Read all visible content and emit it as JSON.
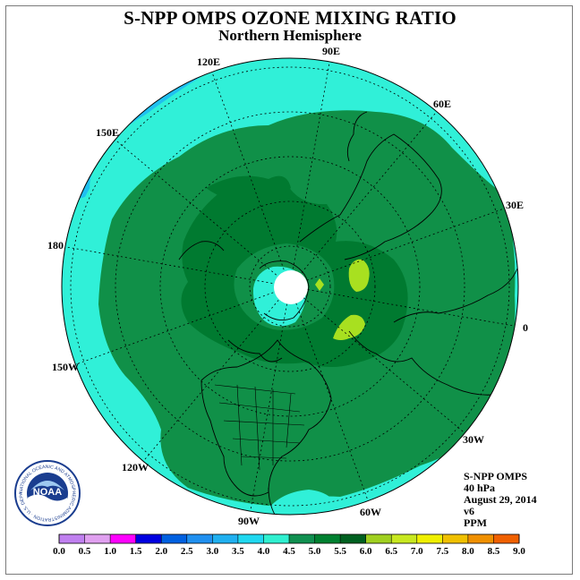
{
  "title": "S-NPP OMPS OZONE MIXING RATIO",
  "subtitle": "Northern Hemisphere",
  "longitude_labels": [
    "90E",
    "60E",
    "30E",
    "0",
    "30W",
    "60W",
    "90W",
    "120W",
    "150W",
    "180",
    "150E",
    "120E"
  ],
  "info": {
    "instrument": "S-NPP OMPS",
    "pressure": "40 hPa",
    "date": "August 29, 2014",
    "version": "v6",
    "units": "PPM"
  },
  "logo": {
    "text": "NOAA",
    "ring_text": "NATIONAL OCEANIC AND ATMOSPHERIC ADMINISTRATION · U.S. DEPARTMENT OF COMMERCE"
  },
  "colorbar": {
    "ticks": [
      "0.0",
      "0.5",
      "1.0",
      "1.5",
      "2.0",
      "2.5",
      "3.0",
      "3.5",
      "4.0",
      "4.5",
      "5.0",
      "5.5",
      "6.0",
      "6.5",
      "7.0",
      "7.5",
      "8.0",
      "8.5",
      "9.0"
    ],
    "colors": [
      "#c080f0",
      "#e0a0f0",
      "#ff00ff",
      "#0000e0",
      "#0060e0",
      "#2090f0",
      "#20b0f0",
      "#20d8f0",
      "#30f0d0",
      "#109050",
      "#008030",
      "#006020",
      "#a0d020",
      "#c8e820",
      "#f0f000",
      "#f0c000",
      "#f09000",
      "#f06000",
      "#f00000",
      "#c00000",
      "#a05020"
    ]
  },
  "map": {
    "projection": "north polar stereographic",
    "colors": {
      "ocean_bg": "#30f0d8",
      "low_cyan": "#20d8f0",
      "deep_cyan": "#20c0f0",
      "green": "#109048",
      "dark_green": "#007a30",
      "yellow_green": "#a8e020",
      "pole_missing": "#ffffff"
    }
  }
}
